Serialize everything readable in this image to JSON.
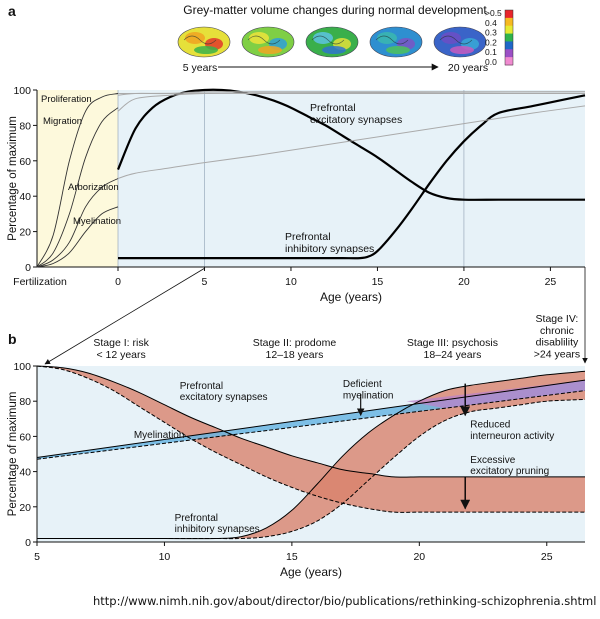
{
  "figure": {
    "caption_url": "http://www.nimh.nih.gov/about/director/bio/publications/rethinking-schizophrenia.shtml"
  },
  "brain_panel": {
    "title": "Grey-matter volume changes during normal development",
    "start_label": "5 years",
    "end_label": "20 years",
    "colorbar_ticks": [
      ">0.5",
      "0.4",
      "0.3",
      "0.2",
      "0.1",
      "0.0"
    ],
    "colorbar_colors": [
      "#e8242a",
      "#f6b921",
      "#e6ea32",
      "#2fb34c",
      "#1e67c8",
      "#9b4fc5",
      "#f08ad0"
    ],
    "brain_count": 5
  },
  "chart_data": [
    {
      "panel_label": "a",
      "type": "line",
      "xlabel": "Age (years)",
      "ylabel": "Percentage of maximum",
      "x_tick_labels": [
        "Fertilization",
        "0",
        "5",
        "10",
        "15",
        "20",
        "25"
      ],
      "xlim": [
        0,
        27
      ],
      "ylim": [
        0,
        100
      ],
      "y_ticks": [
        0,
        20,
        40,
        60,
        80,
        100
      ],
      "prenatal_shading": "#fdf9dc",
      "postnatal_shading": "#e7f2f8",
      "series": [
        {
          "name": "Proliferation",
          "region": "prenatal",
          "x": [
            0,
            0.2,
            0.4,
            0.6,
            0.8,
            1
          ],
          "y": [
            0,
            18,
            60,
            88,
            96,
            98
          ]
        },
        {
          "name": "Migration",
          "region": "prenatal",
          "x": [
            0,
            0.2,
            0.4,
            0.6,
            0.8,
            1
          ],
          "y": [
            0,
            8,
            30,
            62,
            82,
            90
          ]
        },
        {
          "name": "Arborization",
          "region": "prenatal",
          "x": [
            0,
            0.2,
            0.4,
            0.6,
            0.8,
            1
          ],
          "y": [
            0,
            4,
            14,
            34,
            45,
            50
          ]
        },
        {
          "name": "Myelination",
          "region": "prenatal",
          "x": [
            0,
            0.2,
            0.4,
            0.6,
            0.8,
            1
          ],
          "y": [
            0,
            2,
            8,
            20,
            30,
            34
          ]
        },
        {
          "name": "Prefrontal excitatory synapses",
          "x": [
            0,
            1,
            2,
            3,
            4,
            5,
            6,
            7,
            8,
            9,
            10,
            11,
            12,
            13,
            14,
            15,
            16,
            17,
            18,
            19,
            20,
            22,
            24,
            26,
            27
          ],
          "y": [
            55,
            78,
            90,
            96,
            99,
            100,
            100,
            99,
            97,
            94,
            90,
            85,
            80,
            74,
            68,
            62,
            55,
            48,
            42,
            39,
            38,
            38,
            38,
            38,
            38
          ]
        },
        {
          "name": "Prefrontal inhibitory synapses",
          "x": [
            0,
            2,
            4,
            6,
            8,
            10,
            12,
            13,
            14,
            14.5,
            15,
            16,
            17,
            18,
            19,
            20,
            21,
            22,
            24,
            26,
            27
          ],
          "y": [
            5,
            5,
            5,
            5,
            5,
            5,
            5,
            5,
            5,
            6,
            9,
            20,
            33,
            47,
            60,
            71,
            80,
            87,
            91,
            95,
            97
          ]
        },
        {
          "name": "",
          "x": [
            0,
            1,
            3,
            5,
            8,
            12,
            16,
            20,
            24,
            27
          ],
          "y": [
            50,
            53,
            56,
            59,
            63,
            69,
            75,
            81,
            87,
            91
          ]
        },
        {
          "name": "",
          "x": [
            0,
            1,
            3,
            5,
            8,
            12,
            16,
            20,
            24,
            27
          ],
          "y": [
            88,
            95,
            97,
            98,
            98,
            98,
            98,
            98,
            98,
            98
          ]
        },
        {
          "name": "",
          "x": [
            0,
            1,
            3,
            5,
            8,
            12,
            16,
            20,
            24,
            27
          ],
          "y": [
            97,
            98,
            98,
            99,
            99,
            99,
            99,
            99,
            99,
            99
          ]
        }
      ],
      "annotations": [
        "Proliferation",
        "Migration",
        "Arborization",
        "Myelination",
        "Prefrontal\nexcitatory synapses",
        "Prefrontal\ninhibitory synapses"
      ],
      "vertical_gridlines": [
        5,
        20
      ]
    },
    {
      "panel_label": "b",
      "type": "line",
      "xlabel": "Age (years)",
      "ylabel": "Percentage of maximum",
      "xlim": [
        5,
        26.5
      ],
      "ylim": [
        0,
        100
      ],
      "x_ticks": [
        5,
        10,
        15,
        20,
        25
      ],
      "y_ticks": [
        0,
        20,
        40,
        60,
        80,
        100
      ],
      "stages": [
        {
          "label": "Stage I: risk\n< 12 years",
          "x": 8.3
        },
        {
          "label": "Stage II: prodome\n12–18 years",
          "x": 15.1
        },
        {
          "label": "Stage III: psychosis\n18–24 years",
          "x": 21.3
        },
        {
          "label": "Stage IV:\nchronic\ndisablility\n>24 years",
          "x": 25.4
        }
      ],
      "series": [
        {
          "name": "Prefrontal excitatory synapses",
          "x": [
            5,
            6,
            7,
            8,
            9,
            10,
            11,
            12,
            13,
            14,
            15,
            16,
            17,
            18,
            19,
            20,
            21,
            22,
            23,
            24,
            25,
            26.5
          ],
          "y": [
            100,
            99,
            96,
            91,
            85,
            78,
            71,
            65,
            59,
            54,
            49,
            45,
            41,
            39,
            37,
            37,
            37,
            37,
            37,
            37,
            37,
            37
          ]
        },
        {
          "name": "Prefrontal excitatory synapses (schizophrenia)",
          "x": [
            5,
            6,
            7,
            8,
            9,
            10,
            11,
            12,
            13,
            14,
            15,
            16,
            17,
            18,
            19,
            20,
            21,
            22,
            23,
            24,
            25,
            26.5
          ],
          "y": [
            100,
            98,
            93,
            86,
            77,
            68,
            59,
            51,
            44,
            37,
            31,
            26,
            22,
            19,
            17,
            17,
            17,
            17,
            17,
            17,
            17,
            17
          ]
        },
        {
          "name": "Prefrontal inhibitory synapses",
          "x": [
            5,
            8,
            10,
            12,
            13,
            14,
            15,
            16,
            17,
            18,
            19,
            20,
            21,
            22,
            23,
            24,
            25,
            26.5
          ],
          "y": [
            2,
            2,
            2,
            2,
            3,
            8,
            18,
            33,
            49,
            62,
            72,
            80,
            86,
            89,
            91,
            93,
            95,
            97
          ]
        },
        {
          "name": "Prefrontal inhibitory synapses (schizophrenia)",
          "x": [
            5,
            8,
            10,
            12,
            13,
            14,
            15,
            16,
            17,
            18,
            19,
            20,
            21,
            22,
            23,
            24,
            25,
            26.5
          ],
          "y": [
            2,
            2,
            2,
            2,
            2,
            3,
            6,
            12,
            22,
            35,
            48,
            60,
            69,
            74,
            76,
            78,
            80,
            81
          ]
        },
        {
          "name": "Myelination",
          "x": [
            5,
            26.5
          ],
          "y": [
            48,
            92
          ]
        },
        {
          "name": "Myelination (schizophrenia)",
          "x": [
            5,
            26.5
          ],
          "y": [
            47,
            86
          ]
        }
      ],
      "annotations": [
        {
          "text": "Prefrontal\nexcitatory synapses",
          "x": 10.6,
          "y": 87
        },
        {
          "text": "Myelination",
          "x": 8.8,
          "y": 59
        },
        {
          "text": "Prefrontal\ninhibitory synapses",
          "x": 10.4,
          "y": 12
        },
        {
          "text": "Deficient\nmyelination",
          "x": 17.0,
          "y": 88
        },
        {
          "text": "Reduced\ninterneuron activity",
          "x": 22.0,
          "y": 65
        },
        {
          "text": "Excessive\nexcitatory pruning",
          "x": 22.0,
          "y": 45
        }
      ],
      "colors": {
        "synapse_band": "#d9826d",
        "myelin_band": "#6ab6e3",
        "overlap": "#b983c9",
        "background": "#e7f2f8"
      }
    }
  ]
}
